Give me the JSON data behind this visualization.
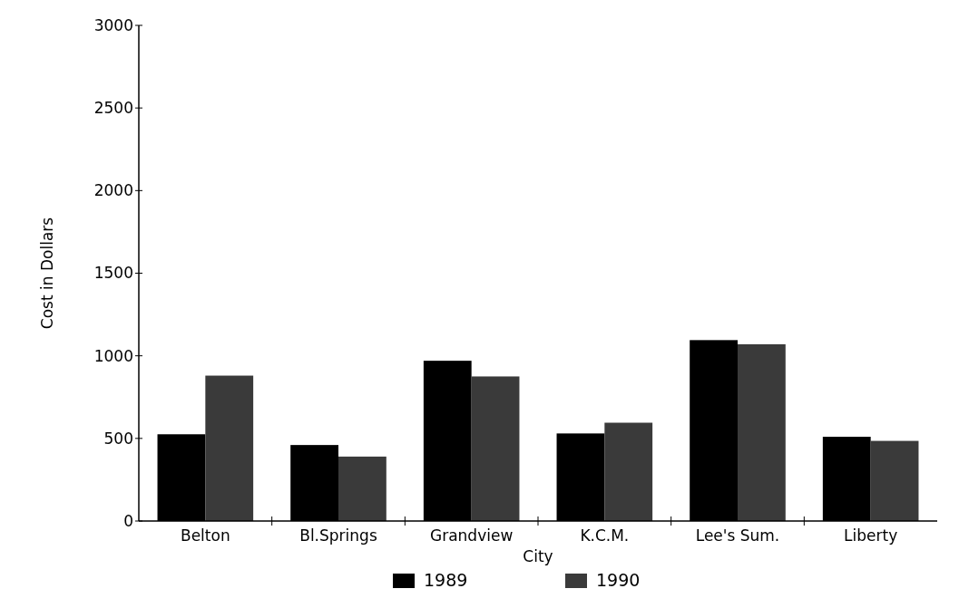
{
  "chart_data": {
    "type": "bar",
    "xlabel": "City",
    "ylabel": "Cost in Dollars",
    "categories": [
      "Belton",
      "Bl.Springs",
      "Grandview",
      "K.C.M.",
      "Lee's Sum.",
      "Liberty"
    ],
    "series": [
      {
        "name": "1989",
        "color": "#000000",
        "values": [
          525,
          460,
          970,
          530,
          1095,
          510
        ]
      },
      {
        "name": "1990",
        "color": "#3a3a3a",
        "values": [
          880,
          390,
          875,
          595,
          1070,
          485
        ]
      }
    ],
    "ylim": [
      0,
      3000
    ],
    "yticks": [
      0,
      500,
      1000,
      1500,
      2000,
      2500,
      3000
    ],
    "grid": false,
    "legend": "bottom"
  }
}
